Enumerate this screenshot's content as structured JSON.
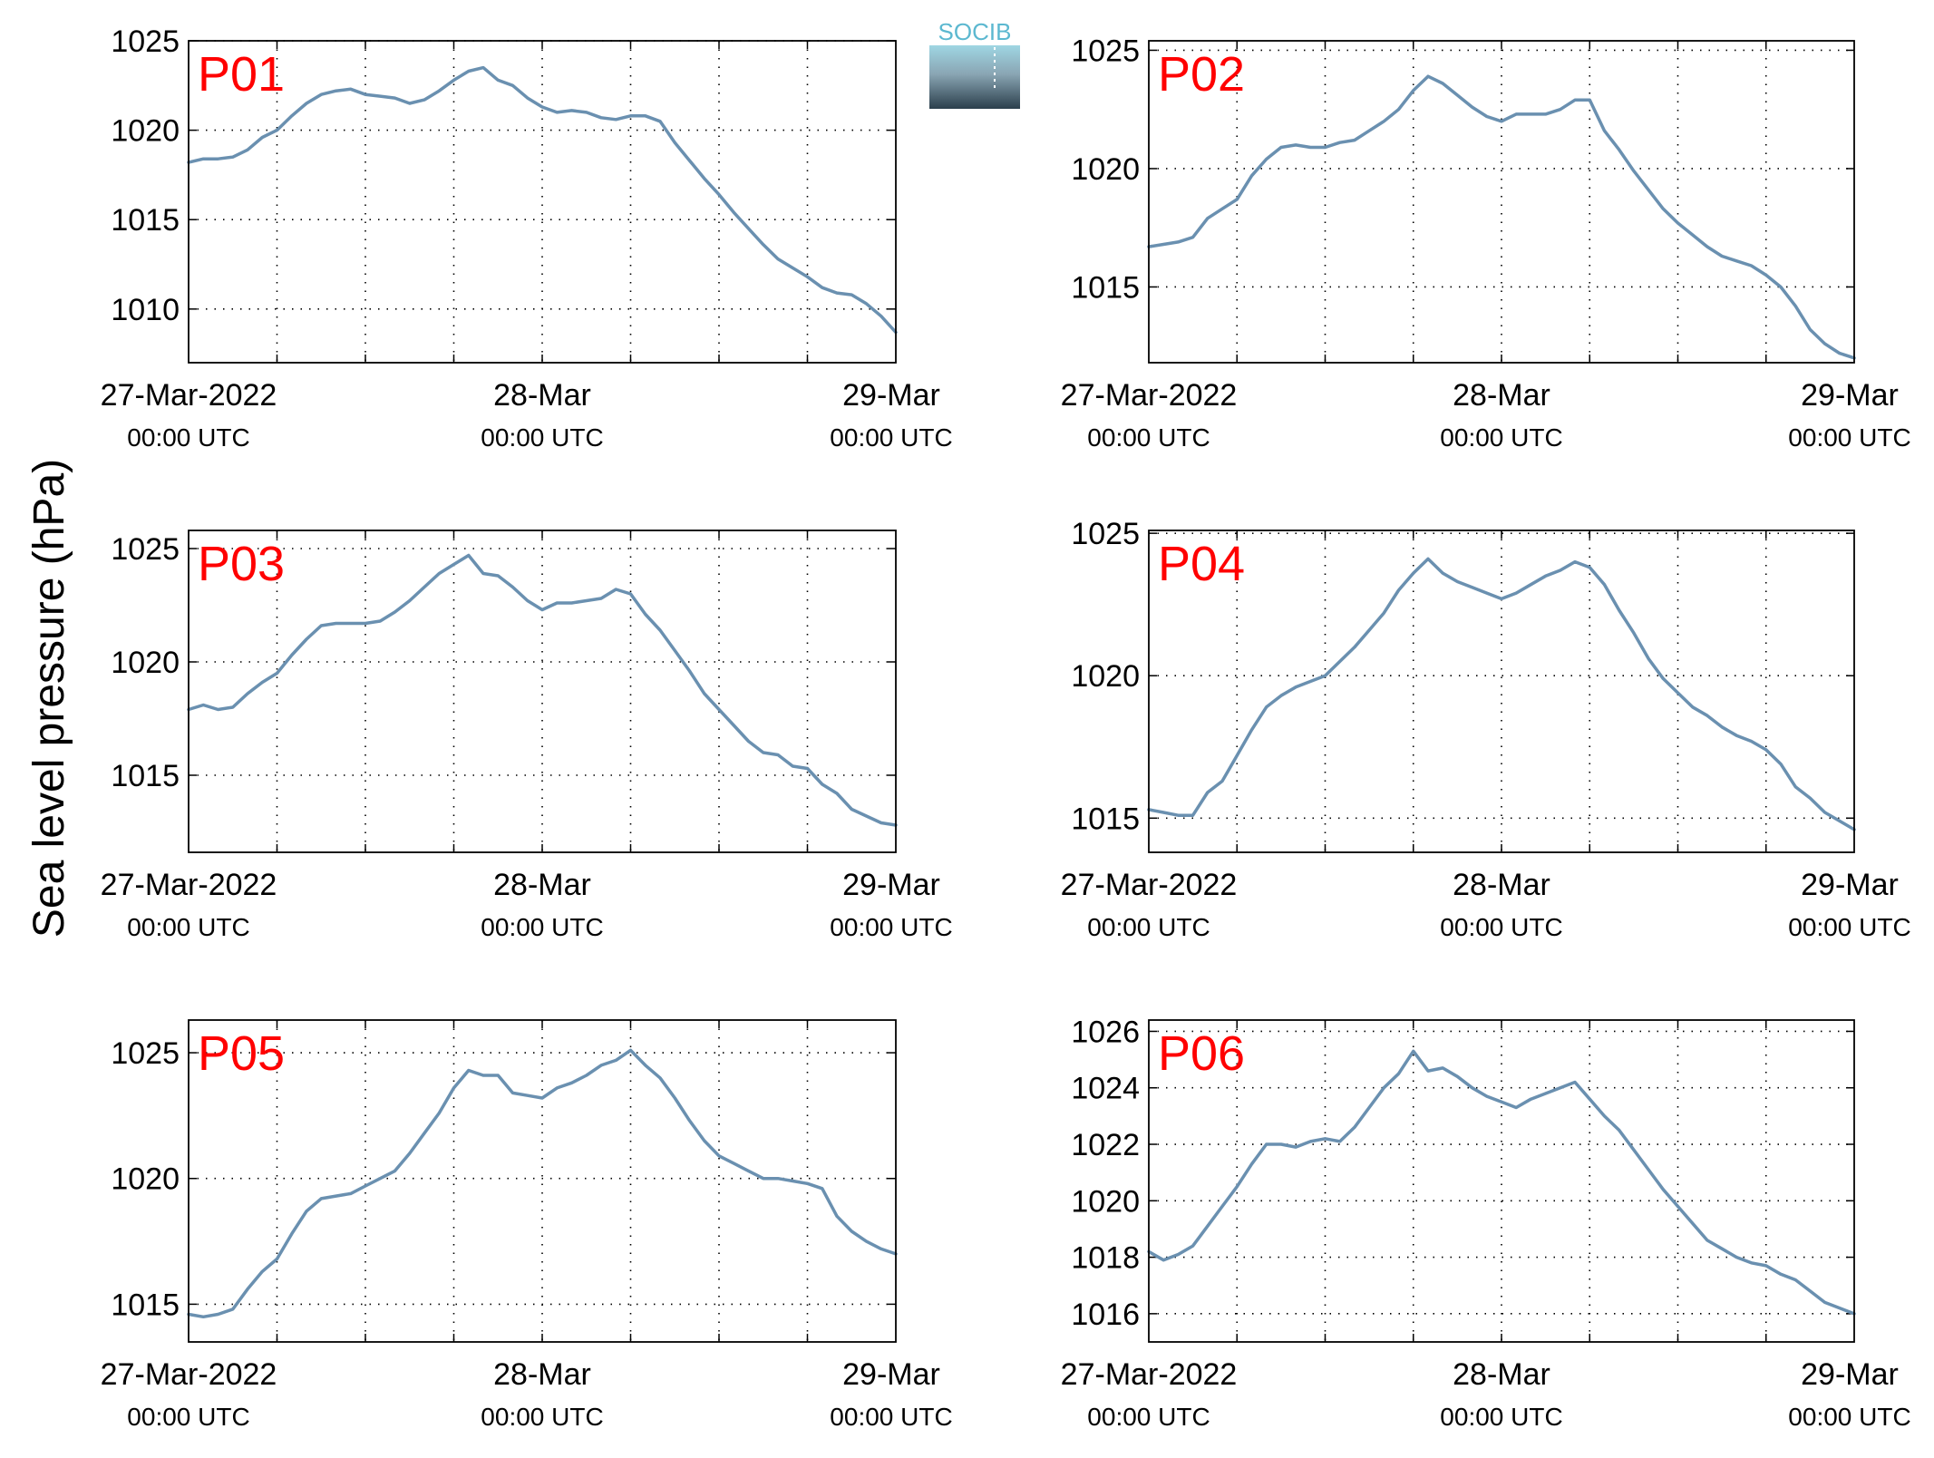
{
  "figure": {
    "ylabel": "Sea level pressure (hPa)",
    "logo_text": "SOCIB",
    "line_color": "#6a90b0",
    "panel_label_color": "#ff0000"
  },
  "chart_data": [
    {
      "type": "line",
      "panel_label": "P01",
      "xlim": [
        "2022-03-27 00:00",
        "2022-03-29 00:00"
      ],
      "xticks": [
        "2022-03-27 00:00",
        "2022-03-28 00:00",
        "2022-03-29 00:00"
      ],
      "xticklabels": [
        [
          "27-Mar-2022",
          "00:00 UTC"
        ],
        [
          "28-Mar",
          "00:00 UTC"
        ],
        [
          "29-Mar",
          "00:00 UTC"
        ]
      ],
      "ylim": [
        1007,
        1025
      ],
      "yticks": [
        1010,
        1015,
        1020,
        1025
      ],
      "grid": true,
      "x_hours": [
        0,
        1,
        2,
        3,
        4,
        5,
        6,
        7,
        8,
        9,
        10,
        11,
        12,
        13,
        14,
        15,
        16,
        17,
        18,
        19,
        20,
        21,
        22,
        23,
        24,
        25,
        26,
        27,
        28,
        29,
        30,
        31,
        32,
        33,
        34,
        35,
        36,
        37,
        38,
        39,
        40,
        41,
        42,
        43,
        44,
        45,
        46,
        47,
        48
      ],
      "values": [
        1018.2,
        1018.4,
        1018.4,
        1018.5,
        1018.9,
        1019.6,
        1020.0,
        1020.8,
        1021.5,
        1022.0,
        1022.2,
        1022.3,
        1022.0,
        1021.9,
        1021.8,
        1021.5,
        1021.7,
        1022.2,
        1022.8,
        1023.3,
        1023.5,
        1022.8,
        1022.5,
        1021.8,
        1021.3,
        1021.0,
        1021.1,
        1021.0,
        1020.7,
        1020.6,
        1020.8,
        1020.8,
        1020.5,
        1019.3,
        1018.3,
        1017.3,
        1016.4,
        1015.4,
        1014.5,
        1013.6,
        1012.8,
        1012.3,
        1011.8,
        1011.2,
        1010.9,
        1010.8,
        1010.3,
        1009.6,
        1008.7
      ]
    },
    {
      "type": "line",
      "panel_label": "P02",
      "xlim": [
        "2022-03-27 00:00",
        "2022-03-29 00:00"
      ],
      "xticks": [
        "2022-03-27 00:00",
        "2022-03-28 00:00",
        "2022-03-29 00:00"
      ],
      "xticklabels": [
        [
          "27-Mar-2022",
          "00:00 UTC"
        ],
        [
          "28-Mar",
          "00:00 UTC"
        ],
        [
          "29-Mar",
          "00:00 UTC"
        ]
      ],
      "ylim": [
        1011.8,
        1025.4
      ],
      "yticks": [
        1015,
        1020,
        1025
      ],
      "grid": true,
      "x_hours": [
        0,
        1,
        2,
        3,
        4,
        5,
        6,
        7,
        8,
        9,
        10,
        11,
        12,
        13,
        14,
        15,
        16,
        17,
        18,
        19,
        20,
        21,
        22,
        23,
        24,
        25,
        26,
        27,
        28,
        29,
        30,
        31,
        32,
        33,
        34,
        35,
        36,
        37,
        38,
        39,
        40,
        41,
        42,
        43,
        44,
        45,
        46,
        47,
        48
      ],
      "values": [
        1016.7,
        1016.8,
        1016.9,
        1017.1,
        1017.9,
        1018.3,
        1018.7,
        1019.7,
        1020.4,
        1020.9,
        1021.0,
        1020.9,
        1020.9,
        1021.1,
        1021.2,
        1021.6,
        1022.0,
        1022.5,
        1023.3,
        1023.9,
        1023.6,
        1023.1,
        1022.6,
        1022.2,
        1022.0,
        1022.3,
        1022.3,
        1022.3,
        1022.5,
        1022.9,
        1022.9,
        1021.6,
        1020.8,
        1019.9,
        1019.1,
        1018.3,
        1017.7,
        1017.2,
        1016.7,
        1016.3,
        1016.1,
        1015.9,
        1015.5,
        1015.0,
        1014.2,
        1013.2,
        1012.6,
        1012.2,
        1012.0
      ]
    },
    {
      "type": "line",
      "panel_label": "P03",
      "xlim": [
        "2022-03-27 00:00",
        "2022-03-29 00:00"
      ],
      "xticks": [
        "2022-03-27 00:00",
        "2022-03-28 00:00",
        "2022-03-29 00:00"
      ],
      "xticklabels": [
        [
          "27-Mar-2022",
          "00:00 UTC"
        ],
        [
          "28-Mar",
          "00:00 UTC"
        ],
        [
          "29-Mar",
          "00:00 UTC"
        ]
      ],
      "ylim": [
        1011.6,
        1025.8
      ],
      "yticks": [
        1015,
        1020,
        1025
      ],
      "grid": true,
      "x_hours": [
        0,
        1,
        2,
        3,
        4,
        5,
        6,
        7,
        8,
        9,
        10,
        11,
        12,
        13,
        14,
        15,
        16,
        17,
        18,
        19,
        20,
        21,
        22,
        23,
        24,
        25,
        26,
        27,
        28,
        29,
        30,
        31,
        32,
        33,
        34,
        35,
        36,
        37,
        38,
        39,
        40,
        41,
        42,
        43,
        44,
        45,
        46,
        47,
        48
      ],
      "values": [
        1017.9,
        1018.1,
        1017.9,
        1018.0,
        1018.6,
        1019.1,
        1019.5,
        1020.3,
        1021.0,
        1021.6,
        1021.7,
        1021.7,
        1021.7,
        1021.8,
        1022.2,
        1022.7,
        1023.3,
        1023.9,
        1024.3,
        1024.7,
        1023.9,
        1023.8,
        1023.3,
        1022.7,
        1022.3,
        1022.6,
        1022.6,
        1022.7,
        1022.8,
        1023.2,
        1023.0,
        1022.1,
        1021.4,
        1020.5,
        1019.6,
        1018.6,
        1017.9,
        1017.2,
        1016.5,
        1016.0,
        1015.9,
        1015.4,
        1015.3,
        1014.6,
        1014.2,
        1013.5,
        1013.2,
        1012.9,
        1012.8
      ]
    },
    {
      "type": "line",
      "panel_label": "P04",
      "xlim": [
        "2022-03-27 00:00",
        "2022-03-29 00:00"
      ],
      "xticks": [
        "2022-03-27 00:00",
        "2022-03-28 00:00",
        "2022-03-29 00:00"
      ],
      "xticklabels": [
        [
          "27-Mar-2022",
          "00:00 UTC"
        ],
        [
          "28-Mar",
          "00:00 UTC"
        ],
        [
          "29-Mar",
          "00:00 UTC"
        ]
      ],
      "ylim": [
        1013.8,
        1025.1
      ],
      "yticks": [
        1015,
        1020,
        1025
      ],
      "grid": true,
      "x_hours": [
        0,
        1,
        2,
        3,
        4,
        5,
        6,
        7,
        8,
        9,
        10,
        11,
        12,
        13,
        14,
        15,
        16,
        17,
        18,
        19,
        20,
        21,
        22,
        23,
        24,
        25,
        26,
        27,
        28,
        29,
        30,
        31,
        32,
        33,
        34,
        35,
        36,
        37,
        38,
        39,
        40,
        41,
        42,
        43,
        44,
        45,
        46,
        47,
        48
      ],
      "values": [
        1015.3,
        1015.2,
        1015.1,
        1015.1,
        1015.9,
        1016.3,
        1017.2,
        1018.1,
        1018.9,
        1019.3,
        1019.6,
        1019.8,
        1020.0,
        1020.5,
        1021.0,
        1021.6,
        1022.2,
        1023.0,
        1023.6,
        1024.1,
        1023.6,
        1023.3,
        1023.1,
        1022.9,
        1022.7,
        1022.9,
        1023.2,
        1023.5,
        1023.7,
        1024.0,
        1023.8,
        1023.2,
        1022.3,
        1021.5,
        1020.6,
        1019.9,
        1019.4,
        1018.9,
        1018.6,
        1018.2,
        1017.9,
        1017.7,
        1017.4,
        1016.9,
        1016.1,
        1015.7,
        1015.2,
        1014.9,
        1014.6
      ]
    },
    {
      "type": "line",
      "panel_label": "P05",
      "xlim": [
        "2022-03-27 00:00",
        "2022-03-29 00:00"
      ],
      "xticks": [
        "2022-03-27 00:00",
        "2022-03-28 00:00",
        "2022-03-29 00:00"
      ],
      "xticklabels": [
        [
          "27-Mar-2022",
          "00:00 UTC"
        ],
        [
          "28-Mar",
          "00:00 UTC"
        ],
        [
          "29-Mar",
          "00:00 UTC"
        ]
      ],
      "ylim": [
        1013.5,
        1026.3
      ],
      "yticks": [
        1015,
        1020,
        1025
      ],
      "grid": true,
      "x_hours": [
        0,
        1,
        2,
        3,
        4,
        5,
        6,
        7,
        8,
        9,
        10,
        11,
        12,
        13,
        14,
        15,
        16,
        17,
        18,
        19,
        20,
        21,
        22,
        23,
        24,
        25,
        26,
        27,
        28,
        29,
        30,
        31,
        32,
        33,
        34,
        35,
        36,
        37,
        38,
        39,
        40,
        41,
        42,
        43,
        44,
        45,
        46,
        47,
        48
      ],
      "values": [
        1014.6,
        1014.5,
        1014.6,
        1014.8,
        1015.6,
        1016.3,
        1016.8,
        1017.8,
        1018.7,
        1019.2,
        1019.3,
        1019.4,
        1019.7,
        1020.0,
        1020.3,
        1021.0,
        1021.8,
        1022.6,
        1023.6,
        1024.3,
        1024.1,
        1024.1,
        1023.4,
        1023.3,
        1023.2,
        1023.6,
        1023.8,
        1024.1,
        1024.5,
        1024.7,
        1025.1,
        1024.5,
        1024.0,
        1023.2,
        1022.3,
        1021.5,
        1020.9,
        1020.6,
        1020.3,
        1020.0,
        1020.0,
        1019.9,
        1019.8,
        1019.6,
        1018.5,
        1017.9,
        1017.5,
        1017.2,
        1017.0
      ]
    },
    {
      "type": "line",
      "panel_label": "P06",
      "xlim": [
        "2022-03-27 00:00",
        "2022-03-29 00:00"
      ],
      "xticks": [
        "2022-03-27 00:00",
        "2022-03-28 00:00",
        "2022-03-29 00:00"
      ],
      "xticklabels": [
        [
          "27-Mar-2022",
          "00:00 UTC"
        ],
        [
          "28-Mar",
          "00:00 UTC"
        ],
        [
          "29-Mar",
          "00:00 UTC"
        ]
      ],
      "ylim": [
        1015.0,
        1026.4
      ],
      "yticks": [
        1016,
        1018,
        1020,
        1022,
        1024,
        1026
      ],
      "grid": true,
      "x_hours": [
        0,
        1,
        2,
        3,
        4,
        5,
        6,
        7,
        8,
        9,
        10,
        11,
        12,
        13,
        14,
        15,
        16,
        17,
        18,
        19,
        20,
        21,
        22,
        23,
        24,
        25,
        26,
        27,
        28,
        29,
        30,
        31,
        32,
        33,
        34,
        35,
        36,
        37,
        38,
        39,
        40,
        41,
        42,
        43,
        44,
        45,
        46,
        47,
        48
      ],
      "values": [
        1018.2,
        1017.9,
        1018.1,
        1018.4,
        1019.1,
        1019.8,
        1020.5,
        1021.3,
        1022.0,
        1022.0,
        1021.9,
        1022.1,
        1022.2,
        1022.1,
        1022.6,
        1023.3,
        1024.0,
        1024.5,
        1025.3,
        1024.6,
        1024.7,
        1024.4,
        1024.0,
        1023.7,
        1023.5,
        1023.3,
        1023.6,
        1023.8,
        1024.0,
        1024.2,
        1023.6,
        1023.0,
        1022.5,
        1021.8,
        1021.1,
        1020.4,
        1019.8,
        1019.2,
        1018.6,
        1018.3,
        1018.0,
        1017.8,
        1017.7,
        1017.4,
        1017.2,
        1016.8,
        1016.4,
        1016.2,
        1016.0
      ]
    }
  ]
}
